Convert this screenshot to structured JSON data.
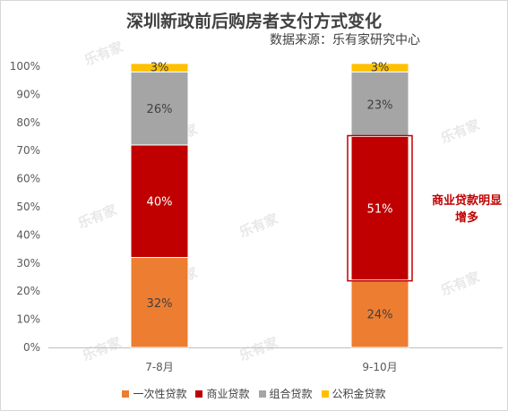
{
  "title": "深圳新政前后购房者支付方式变化",
  "subtitle": "数据来源：乐有家研究中心",
  "annotation": "商业贷款明显增多",
  "watermark": "乐有家",
  "chart_data": {
    "type": "bar",
    "stacked": true,
    "categories": [
      "7-8月",
      "9-10月"
    ],
    "series": [
      {
        "name": "一次性贷款",
        "values": [
          32,
          24
        ],
        "labels": [
          "32%",
          "24%"
        ],
        "color": "#ed7d31"
      },
      {
        "name": "商业贷款",
        "values": [
          40,
          51
        ],
        "labels": [
          "40%",
          "51%"
        ],
        "color": "#c00000"
      },
      {
        "name": "组合贷款",
        "values": [
          26,
          23
        ],
        "labels": [
          "26%",
          "23%"
        ],
        "color": "#a5a5a5"
      },
      {
        "name": "公积金贷款",
        "values": [
          3,
          3
        ],
        "labels": [
          "3%",
          "3%"
        ],
        "color": "#ffc000"
      }
    ],
    "yticks": [
      "0%",
      "10%",
      "20%",
      "30%",
      "40%",
      "50%",
      "60%",
      "70%",
      "80%",
      "90%",
      "100%"
    ],
    "ylim": [
      0,
      100
    ],
    "legend_position": "bottom",
    "grid": false,
    "highlight": {
      "category": "9-10月",
      "series": "商业贷款",
      "color": "#c00000"
    }
  }
}
